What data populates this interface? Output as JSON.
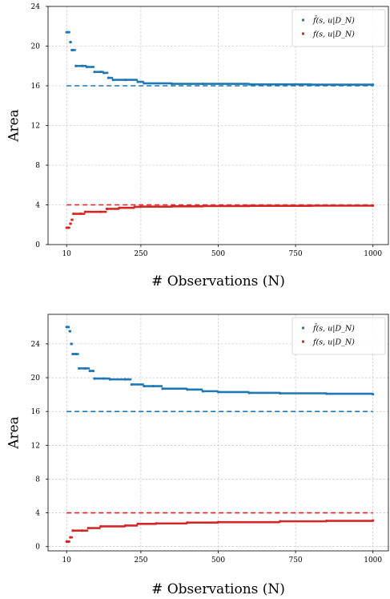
{
  "colors": {
    "upper": "#1f77b4",
    "lower": "#d62728"
  },
  "chart_data": [
    {
      "type": "scatter",
      "xlabel": "# Observations (N)",
      "ylabel": "Area",
      "xticks": [
        "10",
        "250",
        "500",
        "750",
        "1000"
      ],
      "yticks": [
        "0",
        "4",
        "8",
        "12",
        "16",
        "20",
        "24"
      ],
      "xlim": [
        -50,
        1050
      ],
      "ylim": [
        0,
        24
      ],
      "grid": true,
      "legend_position": "top-right",
      "series": [
        {
          "name": "f̄(s, u|D_N)",
          "color": "#1f77b4",
          "style": "markers",
          "points": [
            [
              10,
              21.4
            ],
            [
              15,
              21.4
            ],
            [
              22,
              20.4
            ],
            [
              27,
              19.6
            ],
            [
              30,
              19.6
            ],
            [
              40,
              18
            ],
            [
              60,
              18
            ],
            [
              75,
              17.9
            ],
            [
              100,
              17.4
            ],
            [
              120,
              17.4
            ],
            [
              130,
              17.3
            ],
            [
              145,
              16.8
            ],
            [
              160,
              16.6
            ],
            [
              200,
              16.6
            ],
            [
              240,
              16.4
            ],
            [
              260,
              16.25
            ],
            [
              350,
              16.2
            ],
            [
              450,
              16.2
            ],
            [
              600,
              16.15
            ],
            [
              800,
              16.12
            ],
            [
              1000,
              16.1
            ]
          ]
        },
        {
          "name": "f(s, u|D_N)",
          "color": "#d62728",
          "style": "markers",
          "points": [
            [
              10,
              1.7
            ],
            [
              15,
              1.7
            ],
            [
              22,
              2.1
            ],
            [
              27,
              2.5
            ],
            [
              32,
              3.1
            ],
            [
              55,
              3.1
            ],
            [
              70,
              3.3
            ],
            [
              120,
              3.3
            ],
            [
              140,
              3.6
            ],
            [
              180,
              3.7
            ],
            [
              230,
              3.8
            ],
            [
              250,
              3.82
            ],
            [
              350,
              3.85
            ],
            [
              450,
              3.88
            ],
            [
              600,
              3.9
            ],
            [
              800,
              3.92
            ],
            [
              1000,
              3.93
            ]
          ]
        },
        {
          "name": "upper_ref",
          "color": "#1f77b4",
          "style": "dashed",
          "points": [
            [
              10,
              16
            ],
            [
              1000,
              16
            ]
          ]
        },
        {
          "name": "lower_ref",
          "color": "#d62728",
          "style": "dashed",
          "points": [
            [
              10,
              4
            ],
            [
              1000,
              4
            ]
          ]
        }
      ]
    },
    {
      "type": "scatter",
      "xlabel": "# Observations (N)",
      "ylabel": "Area",
      "xticks": [
        "10",
        "250",
        "500",
        "750",
        "1000"
      ],
      "yticks": [
        "0",
        "4",
        "8",
        "12",
        "16",
        "20",
        "24"
      ],
      "xlim": [
        -50,
        1050
      ],
      "ylim": [
        -0.5,
        27.5
      ],
      "grid": true,
      "legend_position": "top-right",
      "series": [
        {
          "name": "f̄(s, u|D_N)",
          "color": "#1f77b4",
          "style": "markers",
          "points": [
            [
              10,
              26
            ],
            [
              15,
              26
            ],
            [
              20,
              25.5
            ],
            [
              25,
              24
            ],
            [
              30,
              22.8
            ],
            [
              40,
              22.8
            ],
            [
              50,
              21.1
            ],
            [
              70,
              21.1
            ],
            [
              85,
              20.8
            ],
            [
              95,
              20.8
            ],
            [
              100,
              19.9
            ],
            [
              130,
              19.9
            ],
            [
              150,
              19.8
            ],
            [
              200,
              19.8
            ],
            [
              220,
              19.2
            ],
            [
              260,
              19
            ],
            [
              290,
              19
            ],
            [
              320,
              18.7
            ],
            [
              400,
              18.6
            ],
            [
              450,
              18.4
            ],
            [
              500,
              18.3
            ],
            [
              600,
              18.2
            ],
            [
              700,
              18.15
            ],
            [
              850,
              18.1
            ],
            [
              1000,
              18.05
            ]
          ]
        },
        {
          "name": "f(s, u|D_N)",
          "color": "#d62728",
          "style": "markers",
          "points": [
            [
              10,
              0.6
            ],
            [
              15,
              0.6
            ],
            [
              22,
              1.1
            ],
            [
              30,
              1.9
            ],
            [
              60,
              1.9
            ],
            [
              80,
              2.2
            ],
            [
              120,
              2.4
            ],
            [
              200,
              2.5
            ],
            [
              240,
              2.7
            ],
            [
              300,
              2.75
            ],
            [
              400,
              2.85
            ],
            [
              500,
              2.9
            ],
            [
              700,
              3.0
            ],
            [
              850,
              3.05
            ],
            [
              1000,
              3.1
            ]
          ]
        },
        {
          "name": "upper_ref",
          "color": "#1f77b4",
          "style": "dashed",
          "points": [
            [
              10,
              16
            ],
            [
              1000,
              16
            ]
          ]
        },
        {
          "name": "lower_ref",
          "color": "#d62728",
          "style": "dashed",
          "points": [
            [
              10,
              4
            ],
            [
              1000,
              4
            ]
          ]
        }
      ]
    }
  ]
}
